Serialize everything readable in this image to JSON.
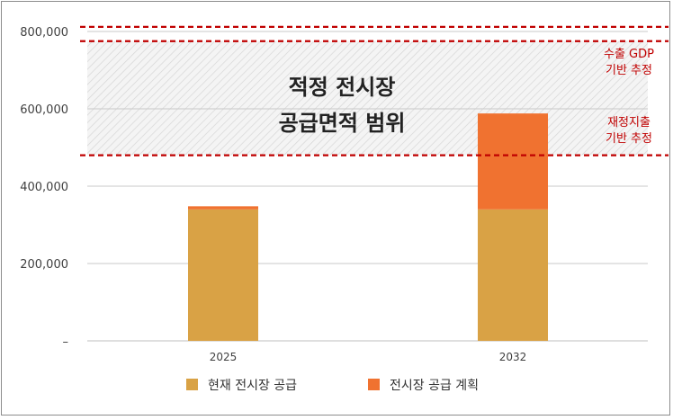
{
  "chart_data": {
    "type": "bar",
    "stacked": true,
    "categories": [
      "2025",
      "2032"
    ],
    "series": [
      {
        "name": "현재 전시장 공급",
        "color": "#d9a245",
        "values": [
          340000,
          340000
        ]
      },
      {
        "name": "전시장 공급 계획",
        "color": "#f07230",
        "values": [
          8000,
          248000
        ]
      }
    ],
    "ylim": [
      0,
      800000
    ],
    "y_ticks": [
      {
        "value": 0,
        "label": "–"
      },
      {
        "value": 200000,
        "label": "200,000"
      },
      {
        "value": 400000,
        "label": "400,000"
      },
      {
        "value": 600000,
        "label": "600,000"
      },
      {
        "value": 800000,
        "label": "800,000"
      }
    ],
    "grid": true,
    "legend_position": "bottom",
    "range_band": {
      "lower": 480000,
      "upper": 775000,
      "label_lines": [
        "적정 전시장",
        "공급면적 범위"
      ]
    },
    "reference_lines": [
      {
        "value": 812000,
        "style": "dashed",
        "color": "#c00000"
      },
      {
        "value": 775000,
        "style": "dashed",
        "color": "#c00000",
        "label_lines": [
          "수출 GDP",
          "기반 추정"
        ]
      },
      {
        "value": 480000,
        "style": "dashed",
        "color": "#c00000",
        "label_lines": [
          "재정지출",
          "기반 추정"
        ]
      }
    ]
  },
  "colors": {
    "reference_label": "#c00000",
    "grid": "#c8c8c8",
    "band_hatch": "#d4d4d4",
    "band_fill": "#f2f2f2"
  }
}
